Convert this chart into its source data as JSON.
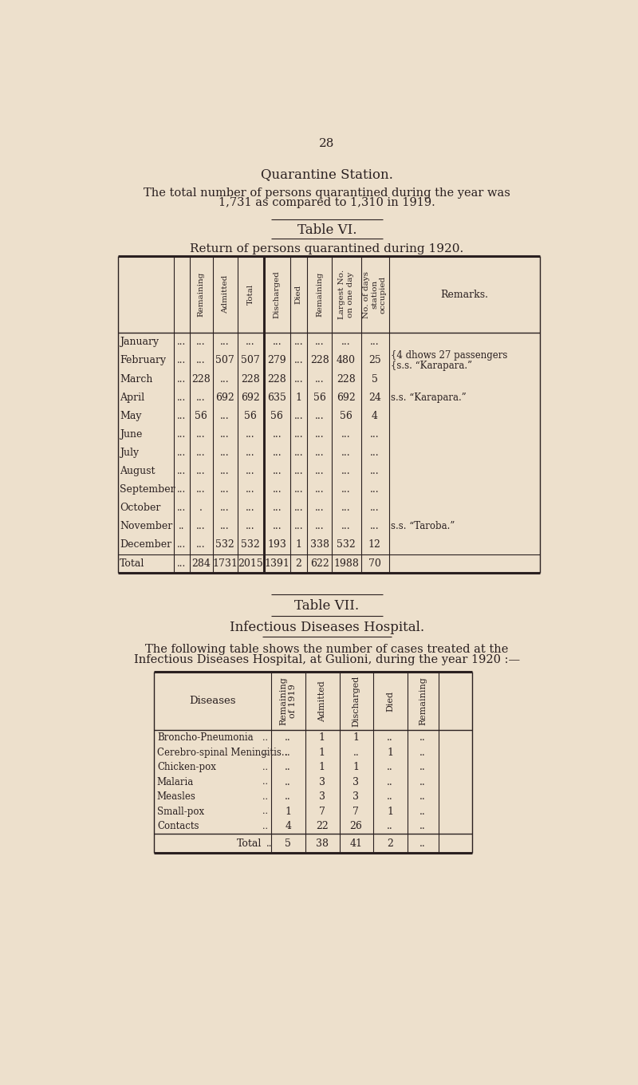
{
  "bg_color": "#ede0cc",
  "text_color": "#2a2020",
  "page_number": "28",
  "section_title": "Quarantine Station.",
  "intro_line1": "The total number of persons quarantined during the year was",
  "intro_line2": "1,731 as compared to 1,310 in 1919.",
  "table6_title": "Table VI.",
  "table6_subtitle": "Return of persons quarantined during 1920.",
  "table6_col_headers": [
    "Remaining",
    "Admitted",
    "Total",
    "Discharged",
    "Died",
    "Remaining",
    "Largest No.\non one day",
    "No. of days\nstation\noccupied"
  ],
  "table6_rows": [
    {
      "month": "January",
      "dots": "...",
      "rem": "...",
      "adm": "...",
      "tot": "...",
      "dis": "...",
      "died": "...",
      "rem2": "...",
      "lar": "...",
      "nod": "...",
      "remarks": ""
    },
    {
      "month": "February",
      "dots": "...",
      "rem": "...",
      "adm": "507",
      "tot": "507",
      "dis": "279",
      "died": "...",
      "rem2": "228",
      "lar": "480",
      "nod": "25",
      "remarks": "{4 dhows 27 passengers\n{s.s. “Karapara.”"
    },
    {
      "month": "March",
      "dots": "...",
      "rem": "228",
      "adm": "...",
      "tot": "228",
      "dis": "228",
      "died": "...",
      "rem2": "...",
      "lar": "228",
      "nod": "5",
      "remarks": ""
    },
    {
      "month": "April",
      "dots": "...",
      "rem": "...",
      "adm": "692",
      "tot": "692",
      "dis": "635",
      "died": "1",
      "rem2": "56",
      "lar": "692",
      "nod": "24",
      "remarks": "s.s. “Karapara.”"
    },
    {
      "month": "May",
      "dots": "...",
      "rem": "56",
      "adm": "...",
      "tot": "56",
      "dis": "56",
      "died": "...",
      "rem2": "...",
      "lar": "56",
      "nod": "4",
      "remarks": ""
    },
    {
      "month": "June",
      "dots": "...",
      "rem": "...",
      "adm": "...",
      "tot": "...",
      "dis": "...",
      "died": "...",
      "rem2": "...",
      "lar": "...",
      "nod": "...",
      "remarks": ""
    },
    {
      "month": "July",
      "dots": "...",
      "rem": "...",
      "adm": "...",
      "tot": "...",
      "dis": "...",
      "died": "...",
      "rem2": "...",
      "lar": "...",
      "nod": "...",
      "remarks": ""
    },
    {
      "month": "August",
      "dots": "...",
      "rem": "...",
      "adm": "...",
      "tot": "...",
      "dis": "...",
      "died": "...",
      "rem2": "...",
      "lar": "...",
      "nod": "...",
      "remarks": ""
    },
    {
      "month": "September",
      "dots": "...",
      "rem": "...",
      "adm": "...",
      "tot": "...",
      "dis": "...",
      "died": "...",
      "rem2": "...",
      "lar": "...",
      "nod": "...",
      "remarks": ""
    },
    {
      "month": "October",
      "dots": "...",
      "rem": ".",
      "adm": "...",
      "tot": "...",
      "dis": "...",
      "died": "...",
      "rem2": "...",
      "lar": "...",
      "nod": "...",
      "remarks": ""
    },
    {
      "month": "November",
      "dots": "..",
      "rem": "...",
      "adm": "...",
      "tot": "...",
      "dis": "...",
      "died": "...",
      "rem2": "...",
      "lar": "...",
      "nod": "...",
      "remarks": "s.s. “Taroba.”"
    },
    {
      "month": "December",
      "dots": "...",
      "rem": "...",
      "adm": "532",
      "tot": "532",
      "dis": "193",
      "died": "1",
      "rem2": "338",
      "lar": "532",
      "nod": "12",
      "remarks": ""
    },
    {
      "month": "Total",
      "dots": "...",
      "rem": "284",
      "adm": "1731",
      "tot": "2015",
      "dis": "1391",
      "died": "2",
      "rem2": "622",
      "lar": "1988",
      "nod": "70",
      "remarks": ""
    }
  ],
  "table7_title": "Table VII.",
  "table7_section": "Infectious Diseases Hospital.",
  "table7_intro_line1": "The following table shows the number of cases treated at the",
  "table7_intro_line2": "Infectious Diseases Hospital, at Gulioni, during the year 1920 :—",
  "table7_rows": [
    {
      "disease": "Broncho-Pneumonia",
      "dots": "..",
      "rem19": "..",
      "adm": "1",
      "dis": "1",
      "died": "..",
      "rem": ".."
    },
    {
      "disease": "Cerebro-spinal Meningitis..",
      "dots": "..",
      "rem19": "..",
      "adm": "1",
      "dis": "..",
      "died": "1",
      "rem": ".."
    },
    {
      "disease": "Chicken-pox",
      "dots": "..",
      "rem19": "..",
      "adm": "1",
      "dis": "1",
      "died": "..",
      "rem": ".."
    },
    {
      "disease": "Malaria",
      "dots": "..",
      "rem19": "..",
      "adm": "3",
      "dis": "3",
      "died": "..",
      "rem": ".."
    },
    {
      "disease": "Measles",
      "dots": "..",
      "rem19": "..",
      "adm": "3",
      "dis": "3",
      "died": "..",
      "rem": ".."
    },
    {
      "disease": "Small-pox",
      "dots": "..",
      "rem19": "1",
      "adm": "7",
      "dis": "7",
      "died": "1",
      "rem": ".."
    },
    {
      "disease": "Contacts",
      "dots": "..",
      "rem19": "4",
      "adm": "22",
      "dis": "26",
      "died": "..",
      "rem": ".."
    }
  ],
  "table7_total": {
    "rem19": "5",
    "adm": "38",
    "dis": "41",
    "died": "2",
    "rem": ".."
  }
}
